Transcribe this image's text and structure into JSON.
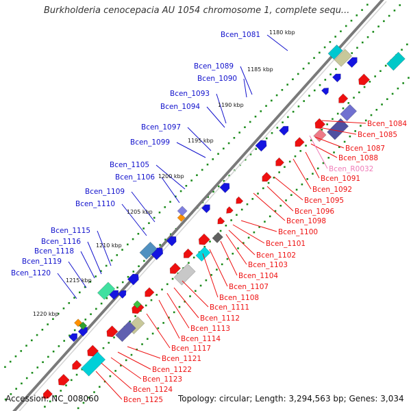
{
  "title": "Burkholderia cenocepacia AU 1054 chromosome 1, complete sequ...",
  "footer": {
    "accession": "Accession: NC_008060",
    "summary": "Topology: circular; Length: 3,294,563 bp; Genes: 3,034"
  },
  "colors": {
    "forward_label": "#1010cc",
    "reverse_label": "#ee1111",
    "rna_label": "#f07cb8",
    "backbone": "#7a7a7a",
    "tick": "#1a8a1a"
  },
  "kbp_labels": [
    "1180 kbp",
    "1185 kbp",
    "1190 kbp",
    "1195 kbp",
    "1200 kbp",
    "1205 kbp",
    "1210 kbp",
    "1215 kbp",
    "1220 kbp"
  ],
  "forward_genes": [
    "Bcen_1081",
    "Bcen_1089",
    "Bcen_1090",
    "Bcen_1093",
    "Bcen_1094",
    "Bcen_1097",
    "Bcen_1099",
    "Bcen_1105",
    "Bcen_1106",
    "Bcen_1109",
    "Bcen_1110",
    "Bcen_1115",
    "Bcen_1116",
    "Bcen_1118",
    "Bcen_1119",
    "Bcen_1120"
  ],
  "reverse_genes_right": [
    "Bcen_1084",
    "Bcen_1085",
    "Bcen_1087",
    "Bcen_1088",
    "Bcen_R0032",
    "Bcen_1091",
    "Bcen_1092",
    "Bcen_1095",
    "Bcen_1096",
    "Bcen_1098"
  ],
  "reverse_genes_bottom": [
    "Bcen_1100",
    "Bcen_1101",
    "Bcen_1102",
    "Bcen_1103",
    "Bcen_1104",
    "Bcen_1107",
    "Bcen_1108",
    "Bcen_1111",
    "Bcen_1112",
    "Bcen_1113",
    "Bcen_1114",
    "Bcen_1117",
    "Bcen_1121",
    "Bcen_1122",
    "Bcen_1123",
    "Bcen_1124",
    "Bcen_1125"
  ]
}
